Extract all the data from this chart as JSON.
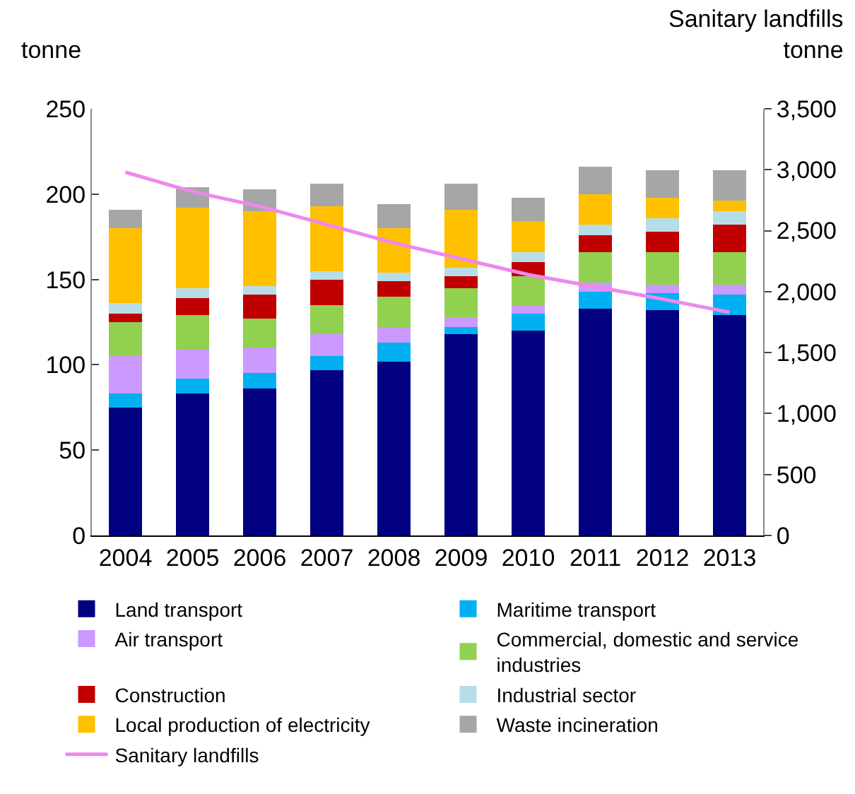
{
  "chart_data": {
    "type": "bar",
    "stacked": true,
    "ylabel": "tonne",
    "y2label": "Sanitary landfills tonne",
    "categories": [
      "2004",
      "2005",
      "2006",
      "2007",
      "2008",
      "2009",
      "2010",
      "2011",
      "2012",
      "2013"
    ],
    "series": [
      {
        "name": "Land transport",
        "color": "#000080",
        "values": [
          75,
          83,
          86,
          97,
          102,
          118,
          120,
          133,
          132,
          129
        ]
      },
      {
        "name": "Maritime transport",
        "color": "#00b0f0",
        "values": [
          8,
          9,
          9,
          8,
          11,
          4,
          10,
          10,
          10,
          12
        ]
      },
      {
        "name": "Air transport",
        "color": "#cc99ff",
        "values": [
          22,
          17,
          15,
          13,
          9,
          6,
          5,
          5,
          5,
          6
        ]
      },
      {
        "name": "Commercial, domestic and service industries",
        "color": "#92d050",
        "values": [
          20,
          20,
          17,
          17,
          18,
          17,
          17,
          18,
          19,
          19
        ]
      },
      {
        "name": "Construction",
        "color": "#c00000",
        "values": [
          5,
          10,
          14,
          15,
          9,
          7,
          8,
          10,
          12,
          16
        ]
      },
      {
        "name": "Industrial sector",
        "color": "#b7dee8",
        "values": [
          6,
          6,
          5,
          5,
          5,
          5,
          6,
          6,
          8,
          8
        ]
      },
      {
        "name": "Local production of electricity",
        "color": "#ffc000",
        "values": [
          44,
          47,
          44,
          38,
          26,
          34,
          18,
          18,
          12,
          6
        ]
      },
      {
        "name": "Waste incineration",
        "color": "#a6a6a6",
        "values": [
          11,
          12,
          13,
          13,
          14,
          15,
          14,
          16,
          16,
          18
        ]
      },
      {
        "name": "Sanitary landfills",
        "type": "line",
        "axis": "y2",
        "color": "#ee88ee",
        "values": [
          2980,
          2820,
          2700,
          2550,
          2400,
          2270,
          2140,
          2040,
          1940,
          1830
        ]
      }
    ],
    "ylim": [
      0,
      250
    ],
    "yticks": [
      0,
      50,
      100,
      150,
      200,
      250
    ],
    "y2lim": [
      0,
      3500
    ],
    "y2ticks": [
      0,
      500,
      {
        "value": 1000,
        "label": "1,000"
      },
      {
        "value": 1500,
        "label": "1,500"
      },
      {
        "value": 2000,
        "label": "2,000"
      },
      {
        "value": 2500,
        "label": "2,500"
      },
      {
        "value": 3000,
        "label": "3,000"
      },
      {
        "value": 3500,
        "label": "3,500"
      }
    ],
    "legend": "bottom",
    "marker": "none",
    "line_style": "solid",
    "grid": false
  }
}
